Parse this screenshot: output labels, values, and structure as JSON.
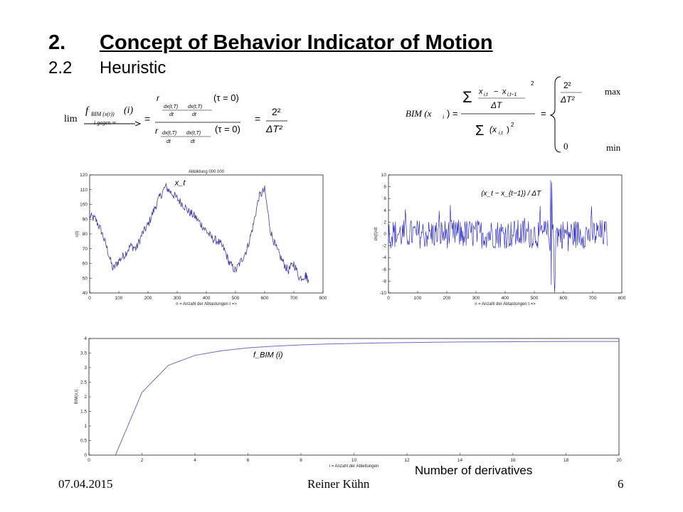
{
  "slide": {
    "section_number": "2.",
    "section_title": "Concept of Behavior Indicator of Motion",
    "subsection_number": "2.2",
    "subsection_title": "Heuristic",
    "annotation_bottom": "Number  of derivatives",
    "footer_date": "07.04.2015",
    "footer_author": "Reiner Kühn",
    "footer_page": "6"
  },
  "formulas": {
    "left_lim": "lim",
    "left_func": "f",
    "left_func_sub": "BIM (x(t))",
    "left_func_arg": "(i)",
    "left_arrow_label": "i gegen ∞",
    "left_rhs": "2² / ΔT²",
    "right_lhs": "BIM (x",
    "right_lhs_sub": "i",
    "right_case_max": "max",
    "right_case_min": "min",
    "right_case_zero": "0",
    "right_case_top": "2² / ΔT²"
  },
  "chart_data": [
    {
      "type": "line",
      "title": "Abbildung 000 000",
      "xlabel": "n = Anzahl der Abtastungen  t =>",
      "ylabel": "x(t)",
      "annotation": "x_t",
      "xlim": [
        0,
        800
      ],
      "ylim": [
        40,
        120
      ],
      "xticks": [
        0,
        100,
        200,
        300,
        400,
        500,
        600,
        700,
        800
      ],
      "yticks": [
        40,
        50,
        60,
        70,
        80,
        90,
        100,
        110,
        120
      ],
      "x": [
        0,
        20,
        40,
        60,
        80,
        100,
        120,
        140,
        160,
        180,
        200,
        220,
        240,
        260,
        280,
        300,
        320,
        340,
        360,
        380,
        400,
        420,
        440,
        460,
        480,
        500,
        520,
        540,
        560,
        580,
        600,
        620,
        640,
        660,
        680,
        700,
        720,
        740,
        750
      ],
      "values": [
        92,
        90,
        82,
        70,
        56,
        62,
        66,
        72,
        70,
        80,
        86,
        96,
        105,
        112,
        108,
        104,
        100,
        95,
        92,
        87,
        82,
        77,
        75,
        70,
        60,
        55,
        62,
        70,
        85,
        105,
        110,
        82,
        70,
        62,
        55,
        60,
        50,
        52,
        49
      ],
      "color": "#3a3aa8"
    },
    {
      "type": "line",
      "xlabel": "n = Anzahl der Abtastungen  t =>",
      "ylabel": "dx(t)/dt",
      "annotation": "(x_t − x_{t−1}) / ΔT",
      "xlim": [
        0,
        800
      ],
      "ylim": [
        -10,
        10
      ],
      "xticks": [
        0,
        100,
        200,
        300,
        400,
        500,
        600,
        700,
        800
      ],
      "yticks": [
        -10,
        -8,
        -6,
        -4,
        -2,
        0,
        2,
        4,
        6,
        8,
        10
      ],
      "noise_amplitude": 2.5,
      "spike_region": [
        555,
        575
      ],
      "spike_amplitude": 10,
      "color": "#1a1ad0"
    },
    {
      "type": "line",
      "xlabel": "i = Anzahl der Ableitungen",
      "ylabel": "BIM(x,i)",
      "annotation": "f_BIM (i)",
      "xlim": [
        0,
        20
      ],
      "ylim": [
        0,
        4
      ],
      "xticks": [
        0,
        2,
        4,
        6,
        8,
        10,
        12,
        14,
        16,
        18,
        20
      ],
      "yticks": [
        0,
        0.5,
        1,
        1.5,
        2,
        2.5,
        3,
        3.5,
        4
      ],
      "x": [
        1,
        2,
        3,
        4,
        5,
        6,
        7,
        8,
        9,
        10,
        11,
        12,
        13,
        14,
        15,
        16,
        17,
        18,
        19,
        20
      ],
      "values": [
        0,
        2.15,
        3.08,
        3.42,
        3.58,
        3.68,
        3.74,
        3.78,
        3.81,
        3.83,
        3.85,
        3.86,
        3.87,
        3.88,
        3.885,
        3.89,
        3.895,
        3.9,
        3.9,
        3.9
      ],
      "color": "#6a6ac8"
    }
  ]
}
